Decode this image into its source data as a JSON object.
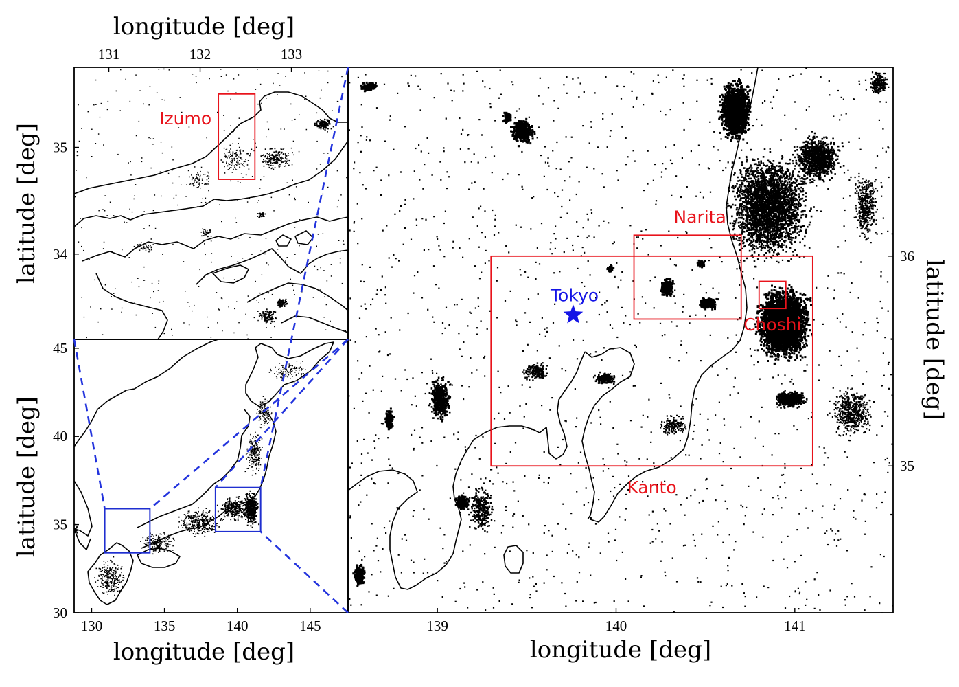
{
  "colors": {
    "region_box": "#e8131b",
    "zoom_box": "#1f2fd0",
    "zoom_lines": "#2233dd",
    "tokyo_marker": "#1414e6",
    "data_points": "#000000"
  },
  "panels": {
    "top_left": {
      "x_title": "longitude [deg]",
      "y_title": "latitude [deg]",
      "x_ticks": [
        {
          "v": 131,
          "label": "131"
        },
        {
          "v": 132,
          "label": "132"
        },
        {
          "v": 133,
          "label": "133"
        }
      ],
      "y_ticks": [
        {
          "v": 35,
          "label": "35"
        },
        {
          "v": 34,
          "label": "34"
        }
      ],
      "regions": [
        {
          "name": "Izumo",
          "lon": [
            132.2,
            132.6
          ],
          "lat": [
            34.7,
            35.5
          ]
        }
      ]
    },
    "bottom_left": {
      "x_title": "longitude [deg]",
      "y_title": "latitude [deg]",
      "x_ticks": [
        {
          "v": 130,
          "label": "130"
        },
        {
          "v": 135,
          "label": "135"
        },
        {
          "v": 140,
          "label": "140"
        },
        {
          "v": 145,
          "label": "145"
        }
      ],
      "y_ticks": [
        {
          "v": 45,
          "label": "45"
        },
        {
          "v": 40,
          "label": "40"
        },
        {
          "v": 35,
          "label": "35"
        },
        {
          "v": 30,
          "label": "30"
        }
      ],
      "zoom_boxes": [
        {
          "id": "west",
          "lon": [
            130.9,
            134.0
          ],
          "lat": [
            33.4,
            35.9
          ]
        },
        {
          "id": "kanto",
          "lon": [
            138.5,
            141.6
          ],
          "lat": [
            34.6,
            37.1
          ]
        }
      ]
    },
    "right": {
      "x_title": "longitude [deg]",
      "y_title": "latitude [deg]",
      "x_ticks": [
        {
          "v": 139,
          "label": "139"
        },
        {
          "v": 140,
          "label": "140"
        },
        {
          "v": 141,
          "label": "141"
        }
      ],
      "y_ticks": [
        {
          "v": 36,
          "label": "36"
        },
        {
          "v": 35,
          "label": "35"
        }
      ],
      "regions": [
        {
          "name": "Narita",
          "lon": [
            140.1,
            140.7
          ],
          "lat": [
            35.7,
            36.1
          ]
        },
        {
          "name": "Kanto",
          "lon": [
            139.3,
            141.1
          ],
          "lat": [
            35.0,
            36.0
          ]
        },
        {
          "name": "Choshi",
          "lon": [
            140.8,
            140.95
          ],
          "lat": [
            35.75,
            35.88
          ]
        }
      ],
      "city": {
        "name": "Tokyo",
        "lon": 139.76,
        "lat": 35.72
      }
    }
  }
}
